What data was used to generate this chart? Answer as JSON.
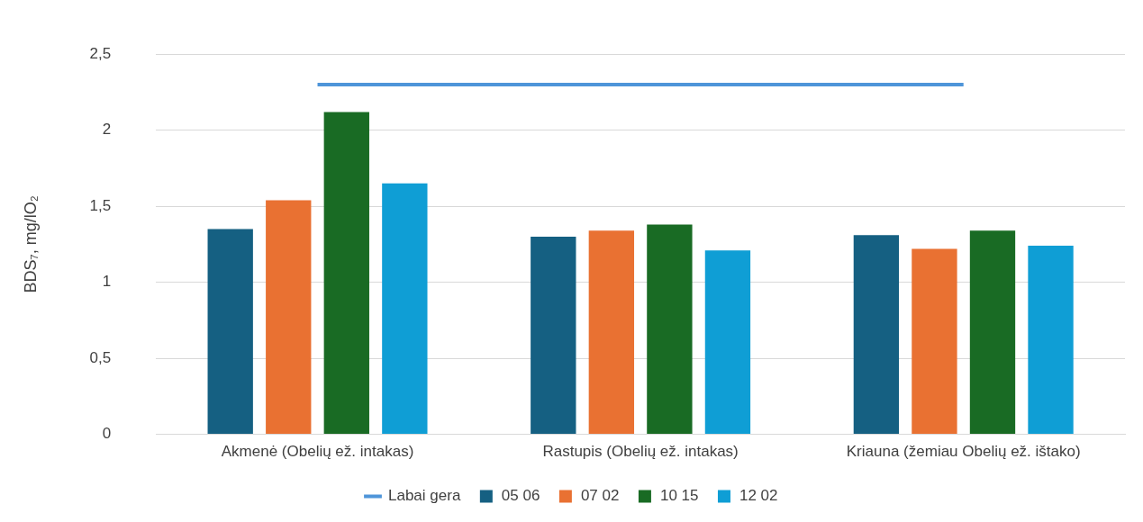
{
  "chart_data": {
    "type": "bar",
    "ylabel": "BDS₇, mg/lO₂",
    "categories": [
      "Akmenė (Obelių ež. intakas)",
      "Rastupis (Obelių ež. intakas)",
      "Kriauna (žemiau Obelių ež. ištako)"
    ],
    "series": [
      {
        "name": "05 06",
        "color": "#156082",
        "values": [
          1.35,
          1.3,
          1.31
        ]
      },
      {
        "name": "07 02",
        "color": "#e97132",
        "values": [
          1.54,
          1.34,
          1.22
        ]
      },
      {
        "name": "10 15",
        "color": "#196b24",
        "values": [
          2.12,
          1.38,
          1.34
        ]
      },
      {
        "name": "12 02",
        "color": "#0f9ed5",
        "values": [
          1.65,
          1.21,
          1.24
        ]
      },
      {
        "name": "Labai gera",
        "type": "line",
        "color": "#4e95d9",
        "values": [
          2.3,
          2.3,
          2.3
        ]
      }
    ],
    "ylim": [
      0,
      2.5
    ],
    "yticks": [
      {
        "value": 0,
        "label": "0"
      },
      {
        "value": 0.5,
        "label": "0,5"
      },
      {
        "value": 1,
        "label": "1"
      },
      {
        "value": 1.5,
        "label": "1,5"
      },
      {
        "value": 2,
        "label": "2"
      },
      {
        "value": 2.5,
        "label": "2,5"
      }
    ],
    "grid": "y",
    "legend": "bottom",
    "marker": "none"
  }
}
